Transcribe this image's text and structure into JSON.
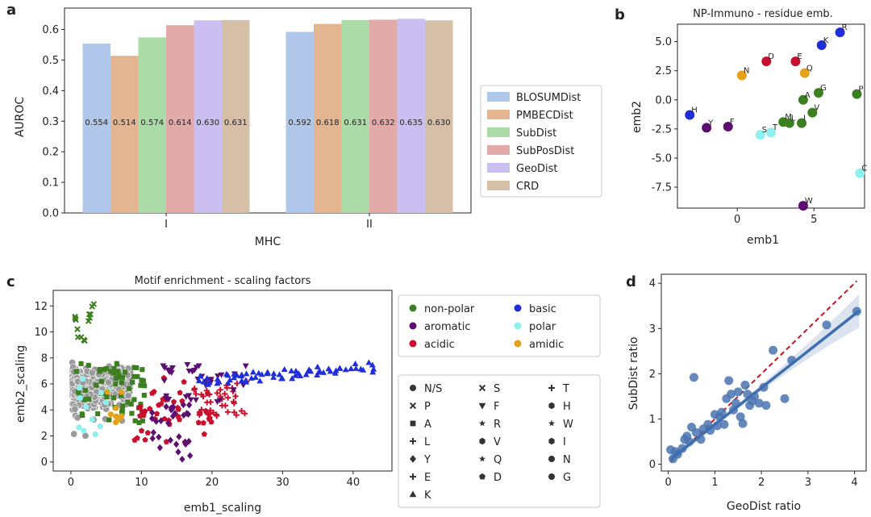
{
  "panels": {
    "a": "a",
    "b": "b",
    "c": "c",
    "d": "d"
  },
  "chart_data": [
    {
      "id": "a",
      "type": "bar",
      "xlabel": "MHC",
      "ylabel": "AUROC",
      "categories": [
        "I",
        "II"
      ],
      "ylim": [
        0,
        0.67
      ],
      "yticks": [
        "0.0",
        "0.1",
        "0.2",
        "0.3",
        "0.4",
        "0.5",
        "0.6"
      ],
      "series": [
        {
          "name": "BLOSUMDist",
          "color": "#b0c7ea",
          "values": [
            0.554,
            0.592
          ],
          "labels": [
            "0.554",
            "0.592"
          ]
        },
        {
          "name": "PMBECDist",
          "color": "#e3b590",
          "values": [
            0.514,
            0.618
          ],
          "labels": [
            "0.514",
            "0.618"
          ]
        },
        {
          "name": "SubDist",
          "color": "#abdba7",
          "values": [
            0.574,
            0.631
          ],
          "labels": [
            "0.574",
            "0.631"
          ]
        },
        {
          "name": "SubPosDist",
          "color": "#e2aaa8",
          "values": [
            0.614,
            0.632
          ],
          "labels": [
            "0.614",
            "0.632"
          ]
        },
        {
          "name": "GeoDist",
          "color": "#cbbff1",
          "values": [
            0.63,
            0.635
          ],
          "labels": [
            "0.630",
            "0.635"
          ]
        },
        {
          "name": "CRD",
          "color": "#d5bfa6",
          "values": [
            0.631,
            0.63
          ],
          "labels": [
            "0.631",
            "0.630"
          ]
        }
      ]
    },
    {
      "id": "b",
      "type": "scatter",
      "title": "NP-Immuno - residue emb.",
      "xlabel": "emb1",
      "ylabel": "emb2",
      "xlim": [
        -3.9,
        8.3
      ],
      "ylim": [
        -9.3,
        6.5
      ],
      "xticks": [
        "0",
        "5"
      ],
      "yticks": [
        "5.0",
        "2.5",
        "0.0",
        "-2.5",
        "-5.0",
        "-7.5"
      ],
      "points": [
        {
          "label": "H",
          "x": -3.1,
          "y": -1.3,
          "group": "basic"
        },
        {
          "label": "Y",
          "x": -2.0,
          "y": -2.4,
          "group": "aromatic"
        },
        {
          "label": "F",
          "x": -0.6,
          "y": -2.3,
          "group": "aromatic"
        },
        {
          "label": "N",
          "x": 0.3,
          "y": 2.1,
          "group": "amidic"
        },
        {
          "label": "D",
          "x": 1.9,
          "y": 3.3,
          "group": "acidic"
        },
        {
          "label": "E",
          "x": 3.8,
          "y": 3.3,
          "group": "acidic"
        },
        {
          "label": "Q",
          "x": 4.4,
          "y": 2.3,
          "group": "amidic"
        },
        {
          "label": "K",
          "x": 5.5,
          "y": 4.7,
          "group": "basic"
        },
        {
          "label": "R",
          "x": 6.7,
          "y": 5.8,
          "group": "basic"
        },
        {
          "label": "G",
          "x": 5.3,
          "y": 0.6,
          "group": "non-polar"
        },
        {
          "label": "A",
          "x": 4.3,
          "y": 0.0,
          "group": "non-polar"
        },
        {
          "label": "P",
          "x": 7.8,
          "y": 0.5,
          "group": "non-polar"
        },
        {
          "label": "V",
          "x": 4.9,
          "y": -1.1,
          "group": "non-polar"
        },
        {
          "label": "M",
          "x": 3.0,
          "y": -1.9,
          "group": "non-polar"
        },
        {
          "label": "L",
          "x": 3.4,
          "y": -2.0,
          "group": "non-polar"
        },
        {
          "label": "I",
          "x": 4.2,
          "y": -2.0,
          "group": "non-polar"
        },
        {
          "label": "S",
          "x": 1.5,
          "y": -3.0,
          "group": "polar"
        },
        {
          "label": "T",
          "x": 2.2,
          "y": -2.8,
          "group": "polar"
        },
        {
          "label": "C",
          "x": 8.0,
          "y": -6.3,
          "group": "polar"
        },
        {
          "label": "W",
          "x": 4.3,
          "y": -9.1,
          "group": "aromatic"
        }
      ]
    },
    {
      "id": "c",
      "type": "scatter",
      "title": "Motif enrichment - scaling factors",
      "xlabel": "emb1_scaling",
      "ylabel": "emb2_scaling",
      "xlim": [
        -2.5,
        45.5
      ],
      "ylim": [
        -0.7,
        13.2
      ],
      "xticks": [
        "0",
        "10",
        "20",
        "30",
        "40"
      ],
      "yticks": [
        "0",
        "2",
        "4",
        "6",
        "8",
        "10",
        "12"
      ],
      "color_legend": [
        {
          "name": "non-polar",
          "color": "#3c7f20"
        },
        {
          "name": "basic",
          "color": "#1f2ed8"
        },
        {
          "name": "aromatic",
          "color": "#5c0f70"
        },
        {
          "name": "polar",
          "color": "#8ff0f0"
        },
        {
          "name": "acidic",
          "color": "#c8102e"
        },
        {
          "name": "amidic",
          "color": "#e3a21a"
        }
      ],
      "marker_legend": [
        {
          "name": "N/S",
          "marker": "circle"
        },
        {
          "name": "S",
          "marker": "x"
        },
        {
          "name": "T",
          "marker": "plus"
        },
        {
          "name": "P",
          "marker": "x"
        },
        {
          "name": "F",
          "marker": "triangle-down"
        },
        {
          "name": "H",
          "marker": "hexagon"
        },
        {
          "name": "A",
          "marker": "square"
        },
        {
          "name": "R",
          "marker": "star"
        },
        {
          "name": "W",
          "marker": "star"
        },
        {
          "name": "L",
          "marker": "plus"
        },
        {
          "name": "V",
          "marker": "hexagon"
        },
        {
          "name": "I",
          "marker": "hexagon"
        },
        {
          "name": "Y",
          "marker": "diamond"
        },
        {
          "name": "Q",
          "marker": "star"
        },
        {
          "name": "N",
          "marker": "circle"
        },
        {
          "name": "E",
          "marker": "plus"
        },
        {
          "name": "D",
          "marker": "pentagon"
        },
        {
          "name": "G",
          "marker": "circle"
        },
        {
          "name": "K",
          "marker": "triangle-up"
        }
      ],
      "groups": [
        {
          "name": "N/S",
          "color": "#9a9a9a",
          "marker": "circle",
          "count": 450,
          "x": [
            0.2,
            8.5
          ],
          "y": [
            2.0,
            8.0
          ]
        },
        {
          "name": "non-polar",
          "color": "#3c7f20",
          "marker": "x",
          "count": 14,
          "x": [
            0.0,
            3.5
          ],
          "y": [
            8.5,
            12.6
          ]
        },
        {
          "name": "non-polar",
          "color": "#3c7f20",
          "marker": "square",
          "count": 60,
          "x": [
            0.5,
            10.5
          ],
          "y": [
            3.0,
            7.6
          ]
        },
        {
          "name": "acidic",
          "color": "#c8102e",
          "marker": "pentagon",
          "count": 45,
          "x": [
            9.0,
            20.0
          ],
          "y": [
            1.5,
            6.5
          ]
        },
        {
          "name": "acidic",
          "color": "#c8102e",
          "marker": "plus",
          "count": 40,
          "x": [
            17.0,
            25.5
          ],
          "y": [
            3.5,
            6.2
          ]
        },
        {
          "name": "aromatic",
          "color": "#5c0f70",
          "marker": "diamond",
          "count": 30,
          "x": [
            11.5,
            17.0
          ],
          "y": [
            0.1,
            4.5
          ]
        },
        {
          "name": "aromatic",
          "color": "#5c0f70",
          "marker": "triangle-down",
          "count": 35,
          "x": [
            13.0,
            25.0
          ],
          "y": [
            4.5,
            7.6
          ]
        },
        {
          "name": "basic",
          "color": "#1f2ed8",
          "marker": "triangle-up",
          "count": 70,
          "x": [
            18.0,
            43.0
          ],
          "y": [
            5.8,
            7.6
          ]
        },
        {
          "name": "polar",
          "color": "#8ff0f0",
          "marker": "circle",
          "count": 12,
          "x": [
            1.0,
            6.0
          ],
          "y": [
            2.0,
            6.5
          ]
        },
        {
          "name": "amidic",
          "color": "#e3a21a",
          "marker": "circle",
          "count": 8,
          "x": [
            1.0,
            7.5
          ],
          "y": [
            2.5,
            5.5
          ]
        }
      ]
    },
    {
      "id": "d",
      "type": "scatter",
      "xlabel": "GeoDist ratio",
      "ylabel": "SubDist ratio",
      "xlim": [
        -0.15,
        4.25
      ],
      "ylim": [
        -0.15,
        4.2
      ],
      "xticks": [
        "0",
        "1",
        "2",
        "3",
        "4"
      ],
      "yticks": [
        "0",
        "1",
        "2",
        "3",
        "4"
      ],
      "fit": {
        "slope": 0.81,
        "intercept": 0.07,
        "x_range": [
          0.05,
          4.1
        ]
      },
      "identity_line": {
        "x_range": [
          0.05,
          4.05
        ]
      },
      "points": [
        [
          0.05,
          0.32
        ],
        [
          0.1,
          0.12
        ],
        [
          0.15,
          0.28
        ],
        [
          0.2,
          0.22
        ],
        [
          0.3,
          0.35
        ],
        [
          0.35,
          0.55
        ],
        [
          0.4,
          0.62
        ],
        [
          0.45,
          0.5
        ],
        [
          0.5,
          0.82
        ],
        [
          0.55,
          1.92
        ],
        [
          0.6,
          0.7
        ],
        [
          0.7,
          0.55
        ],
        [
          0.75,
          0.78
        ],
        [
          0.85,
          0.88
        ],
        [
          0.9,
          0.75
        ],
        [
          1.0,
          1.1
        ],
        [
          1.05,
          0.85
        ],
        [
          1.1,
          1.05
        ],
        [
          1.15,
          1.15
        ],
        [
          1.2,
          0.88
        ],
        [
          1.25,
          1.45
        ],
        [
          1.3,
          1.85
        ],
        [
          1.35,
          1.55
        ],
        [
          1.4,
          1.2
        ],
        [
          1.45,
          1.35
        ],
        [
          1.5,
          1.6
        ],
        [
          1.55,
          1.05
        ],
        [
          1.6,
          0.9
        ],
        [
          1.65,
          1.75
        ],
        [
          1.7,
          1.55
        ],
        [
          1.75,
          1.3
        ],
        [
          1.8,
          1.4
        ],
        [
          1.85,
          1.5
        ],
        [
          1.95,
          1.35
        ],
        [
          2.05,
          1.7
        ],
        [
          2.1,
          1.3
        ],
        [
          2.25,
          2.52
        ],
        [
          2.5,
          1.45
        ],
        [
          2.65,
          2.3
        ],
        [
          3.4,
          3.08
        ],
        [
          4.05,
          3.38
        ]
      ]
    }
  ]
}
